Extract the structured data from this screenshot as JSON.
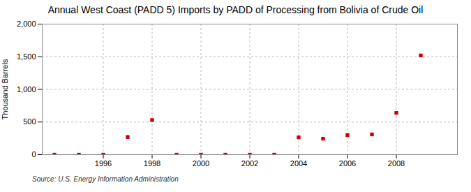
{
  "chart_data": {
    "type": "scatter",
    "title": "Annual West Coast (PADD 5) Imports by PADD of Processing from Bolivia of Crude Oil",
    "ylabel": "Thousand Barrels",
    "source": "Source: U.S. Energy Information Administration",
    "x": [
      1994,
      1995,
      1996,
      1997,
      1998,
      1999,
      2000,
      2001,
      2002,
      2003,
      2004,
      2005,
      2006,
      2007,
      2008,
      2009
    ],
    "values": [
      0,
      0,
      0,
      270,
      530,
      0,
      0,
      0,
      0,
      0,
      265,
      245,
      300,
      310,
      640,
      1520
    ],
    "color": "#cc0000",
    "marker": "square",
    "xlim": [
      1993.5,
      2010.5
    ],
    "ylim": [
      0,
      2000
    ],
    "xticks": [
      1996,
      1998,
      2000,
      2002,
      2004,
      2006,
      2008
    ],
    "yticks": [
      0,
      500,
      {
        "value": 1000,
        "label": "1,000"
      },
      {
        "value": 1500,
        "label": "1,500"
      },
      {
        "value": 2000,
        "label": "2,000"
      }
    ],
    "grid": true
  }
}
